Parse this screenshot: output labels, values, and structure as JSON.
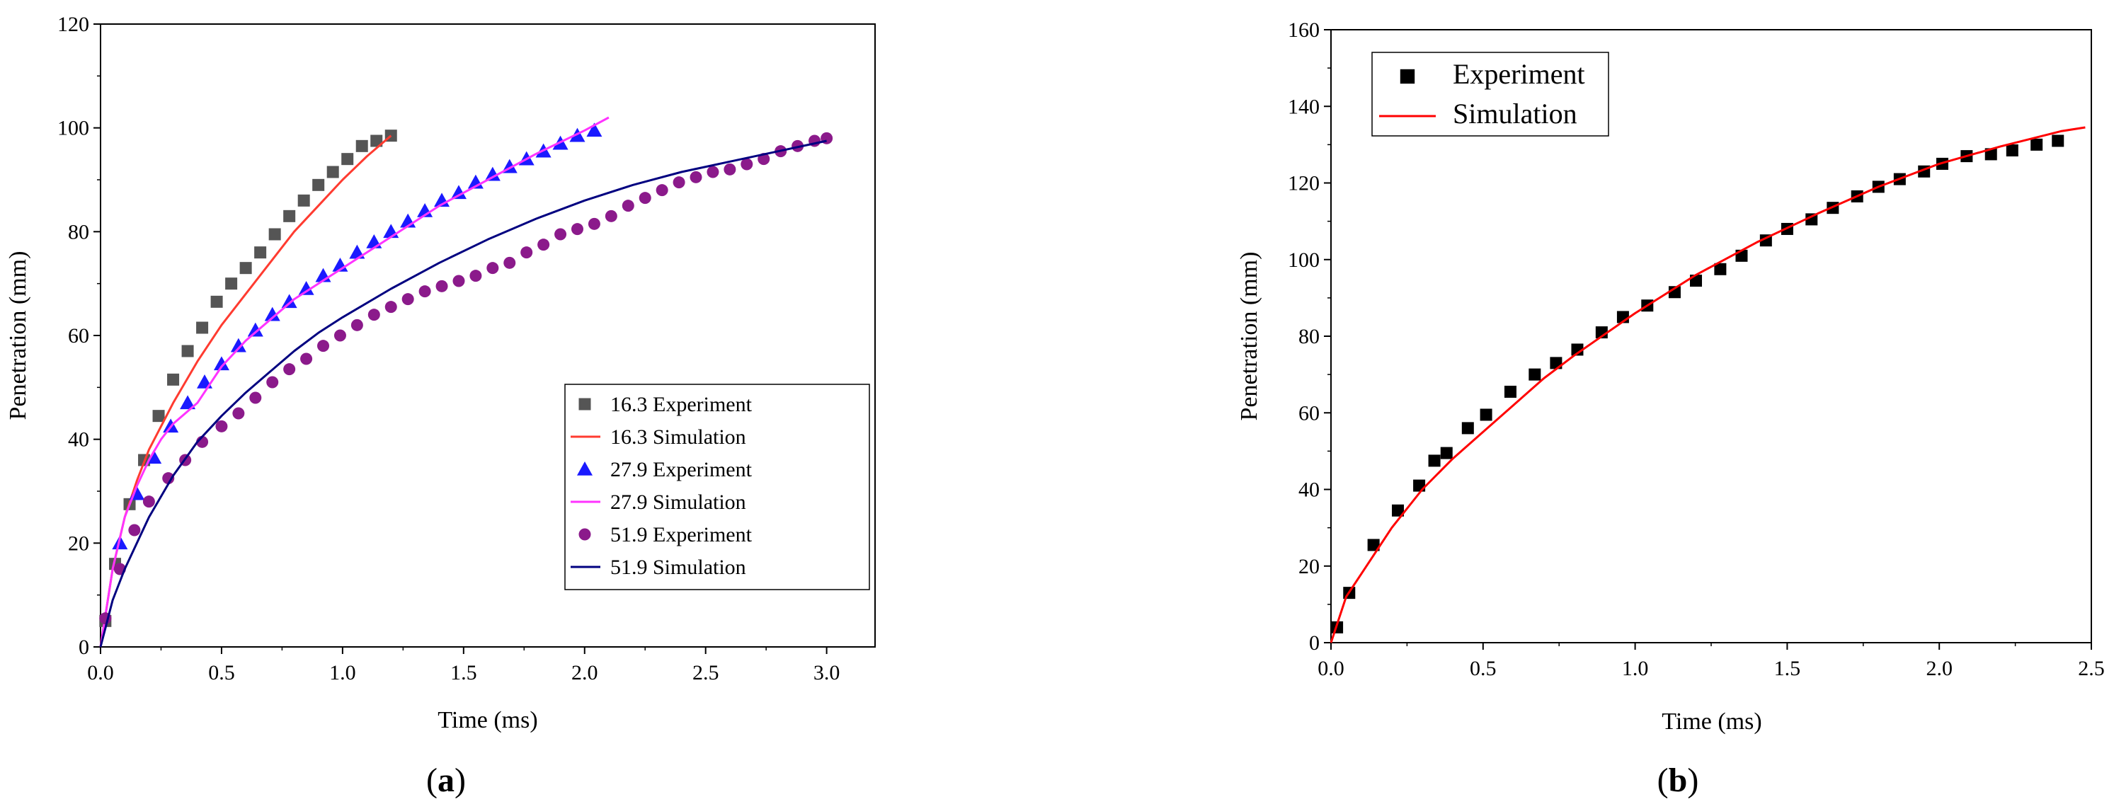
{
  "chart_data": [
    {
      "id": "a",
      "type": "scatter+line",
      "panel_label_open": "(",
      "panel_label_letter": "a",
      "panel_label_close": ")",
      "title": "",
      "xlabel": "Time (ms)",
      "ylabel": "Penetration (mm)",
      "xlim": [
        0,
        3.2
      ],
      "ylim": [
        0,
        120
      ],
      "xticks": [
        0,
        0.5,
        1,
        1.5,
        2,
        2.5,
        3
      ],
      "xtick_labels": [
        "0.0",
        "0.5",
        "1.0",
        "1.5",
        "2.0",
        "2.5",
        "3.0"
      ],
      "yticks": [
        0,
        20,
        40,
        60,
        80,
        100,
        120
      ],
      "ytick_labels": [
        "0",
        "20",
        "40",
        "60",
        "80",
        "100",
        "120"
      ],
      "legend_position": "lower-right",
      "series": [
        {
          "name": "16.3 Experiment",
          "kind": "marker",
          "marker": "square",
          "color": "#555555",
          "x": [
            0.02,
            0.06,
            0.12,
            0.18,
            0.24,
            0.3,
            0.36,
            0.42,
            0.48,
            0.54,
            0.6,
            0.66,
            0.72,
            0.78,
            0.84,
            0.9,
            0.96,
            1.02,
            1.08,
            1.14,
            1.2
          ],
          "y": [
            5,
            16,
            27.5,
            36,
            44.5,
            51.5,
            57,
            61.5,
            66.5,
            70,
            73,
            76,
            79.5,
            83,
            86,
            89,
            91.5,
            94,
            96.5,
            97.5,
            98.5
          ]
        },
        {
          "name": "16.3 Simulation",
          "kind": "line",
          "color": "#ff3b30",
          "x": [
            0,
            0.05,
            0.1,
            0.15,
            0.2,
            0.3,
            0.4,
            0.5,
            0.6,
            0.7,
            0.8,
            0.9,
            1.0,
            1.1,
            1.2
          ],
          "y": [
            0,
            15,
            25,
            32,
            38,
            47,
            55,
            62,
            68,
            74,
            80,
            85,
            90,
            94.5,
            98.5
          ]
        },
        {
          "name": "27.9 Experiment",
          "kind": "marker",
          "marker": "triangle",
          "color": "#1a1aff",
          "x": [
            0.08,
            0.15,
            0.22,
            0.29,
            0.36,
            0.43,
            0.5,
            0.57,
            0.64,
            0.71,
            0.78,
            0.85,
            0.92,
            0.99,
            1.06,
            1.13,
            1.2,
            1.27,
            1.34,
            1.41,
            1.48,
            1.55,
            1.62,
            1.69,
            1.76,
            1.83,
            1.9,
            1.97,
            2.04
          ],
          "y": [
            20,
            29.5,
            36.5,
            42.5,
            47,
            51,
            54.5,
            58,
            61,
            64,
            66.5,
            69,
            71.5,
            73.5,
            76,
            78,
            80,
            82,
            84,
            86,
            87.5,
            89.5,
            91,
            92.5,
            94,
            95.5,
            97,
            98.5,
            99.5
          ]
        },
        {
          "name": "27.9 Simulation",
          "kind": "line",
          "color": "#ff33ff",
          "x": [
            0,
            0.05,
            0.1,
            0.15,
            0.2,
            0.25,
            0.3,
            0.4,
            0.5,
            0.6,
            0.8,
            1.0,
            1.2,
            1.4,
            1.6,
            1.8,
            2.0,
            2.1
          ],
          "y": [
            0,
            15,
            25,
            31,
            36,
            40,
            43,
            47,
            54,
            59,
            67,
            73,
            79,
            85,
            90,
            95,
            99.5,
            102
          ]
        },
        {
          "name": "51.9 Experiment",
          "kind": "marker",
          "marker": "circle",
          "color": "#8b1a8b",
          "x": [
            0.02,
            0.08,
            0.14,
            0.2,
            0.28,
            0.35,
            0.42,
            0.5,
            0.57,
            0.64,
            0.71,
            0.78,
            0.85,
            0.92,
            0.99,
            1.06,
            1.13,
            1.2,
            1.27,
            1.34,
            1.41,
            1.48,
            1.55,
            1.62,
            1.69,
            1.76,
            1.83,
            1.9,
            1.97,
            2.04,
            2.11,
            2.18,
            2.25,
            2.32,
            2.39,
            2.46,
            2.53,
            2.6,
            2.67,
            2.74,
            2.81,
            2.88,
            2.95,
            3.0
          ],
          "y": [
            5.5,
            15,
            22.5,
            28,
            32.5,
            36,
            39.5,
            42.5,
            45,
            48,
            51,
            53.5,
            55.5,
            58,
            60,
            62,
            64,
            65.5,
            67,
            68.5,
            69.5,
            70.5,
            71.5,
            73,
            74,
            76,
            77.5,
            79.5,
            80.5,
            81.5,
            83,
            85,
            86.5,
            88,
            89.5,
            90.5,
            91.5,
            92,
            93,
            94,
            95.5,
            96.5,
            97.5,
            98
          ]
        },
        {
          "name": "51.9 Simulation",
          "kind": "line",
          "color": "#000080",
          "x": [
            0,
            0.05,
            0.1,
            0.2,
            0.3,
            0.4,
            0.5,
            0.6,
            0.7,
            0.8,
            0.9,
            1.0,
            1.2,
            1.4,
            1.6,
            1.8,
            2.0,
            2.2,
            2.4,
            2.6,
            2.8,
            3.0
          ],
          "y": [
            0,
            9,
            15,
            25,
            33,
            39.5,
            44.5,
            49,
            53,
            57,
            60.5,
            63.5,
            69,
            74,
            78.5,
            82.5,
            86,
            89,
            91.5,
            93.5,
            95.5,
            97.5
          ]
        }
      ]
    },
    {
      "id": "b",
      "type": "scatter+line",
      "panel_label_open": "(",
      "panel_label_letter": "b",
      "panel_label_close": ")",
      "title": "",
      "xlabel": "Time (ms)",
      "ylabel": "Penetration (mm)",
      "xlim": [
        0,
        2.5
      ],
      "ylim": [
        0,
        160
      ],
      "xticks": [
        0,
        0.5,
        1,
        1.5,
        2,
        2.5
      ],
      "xtick_labels": [
        "0.0",
        "0.5",
        "1.0",
        "1.5",
        "2.0",
        "2.5"
      ],
      "yticks": [
        0,
        20,
        40,
        60,
        80,
        100,
        120,
        140,
        160
      ],
      "ytick_labels": [
        "0",
        "20",
        "40",
        "60",
        "80",
        "100",
        "120",
        "140",
        "160"
      ],
      "legend_position": "top-left",
      "series": [
        {
          "name": "Experiment",
          "kind": "marker",
          "marker": "square",
          "color": "#000000",
          "x": [
            0.02,
            0.06,
            0.14,
            0.22,
            0.29,
            0.34,
            0.38,
            0.45,
            0.51,
            0.59,
            0.67,
            0.74,
            0.81,
            0.89,
            0.96,
            1.04,
            1.13,
            1.2,
            1.28,
            1.35,
            1.43,
            1.5,
            1.58,
            1.65,
            1.73,
            1.8,
            1.87,
            1.95,
            2.01,
            2.09,
            2.17,
            2.24,
            2.32,
            2.39
          ],
          "y": [
            4,
            13,
            25.5,
            34.5,
            41,
            47.5,
            49.5,
            56,
            59.5,
            65.5,
            70,
            73,
            76.5,
            81,
            85,
            88,
            91.5,
            94.5,
            97.5,
            101,
            105,
            108,
            110.5,
            113.5,
            116.5,
            119,
            121,
            123,
            125,
            127,
            127.5,
            128.5,
            130,
            131
          ]
        },
        {
          "name": "Simulation",
          "kind": "line",
          "color": "#ff0000",
          "x": [
            0,
            0.05,
            0.1,
            0.2,
            0.3,
            0.4,
            0.5,
            0.6,
            0.7,
            0.8,
            0.9,
            1.0,
            1.2,
            1.4,
            1.6,
            1.8,
            2.0,
            2.2,
            2.4,
            2.48
          ],
          "y": [
            0,
            12,
            18,
            30,
            40,
            48,
            55,
            62,
            69,
            75,
            80.5,
            86,
            96,
            104.5,
            112,
            119,
            125,
            129.5,
            133.5,
            134.5
          ]
        }
      ]
    }
  ]
}
